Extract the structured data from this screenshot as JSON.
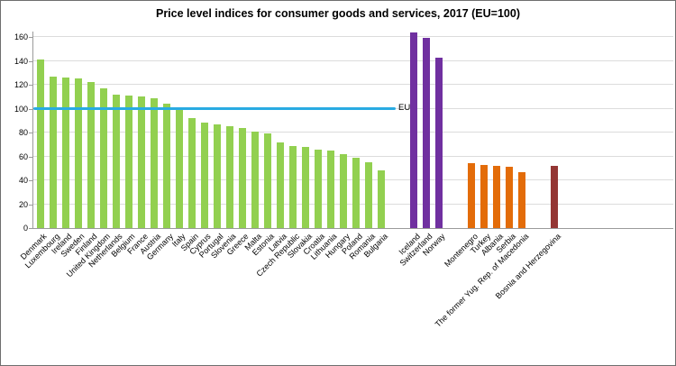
{
  "chart_data": {
    "type": "bar",
    "title": "Price level indices for consumer goods and services, 2017 (EU=100)",
    "xlabel": "",
    "ylabel": "",
    "ylim": [
      0,
      160
    ],
    "ytick_interval": 20,
    "grid": true,
    "legend": "none",
    "reference_line": {
      "label": "EU",
      "value": 100,
      "color": "#29abe2"
    },
    "groups": [
      {
        "color": "#92d050",
        "bars": [
          {
            "label": "Denmark",
            "value": 141
          },
          {
            "label": "Luxembourg",
            "value": 127
          },
          {
            "label": "Ireland",
            "value": 126
          },
          {
            "label": "Sweden",
            "value": 125
          },
          {
            "label": "Finland",
            "value": 122
          },
          {
            "label": "United Kingdom",
            "value": 117
          },
          {
            "label": "Netherlands",
            "value": 112
          },
          {
            "label": "Belgium",
            "value": 111
          },
          {
            "label": "France",
            "value": 110
          },
          {
            "label": "Austria",
            "value": 109
          },
          {
            "label": "Germany",
            "value": 104
          },
          {
            "label": "Italy",
            "value": 99
          },
          {
            "label": "Spain",
            "value": 92
          },
          {
            "label": "Cyprus",
            "value": 88
          },
          {
            "label": "Portugal",
            "value": 87
          },
          {
            "label": "Slovenia",
            "value": 85
          },
          {
            "label": "Greece",
            "value": 84
          },
          {
            "label": "Malta",
            "value": 81
          },
          {
            "label": "Estonia",
            "value": 79
          },
          {
            "label": "Latvia",
            "value": 72
          },
          {
            "label": "Czech Republic",
            "value": 69
          },
          {
            "label": "Slovakia",
            "value": 68
          },
          {
            "label": "Croatia",
            "value": 66
          },
          {
            "label": "Lithuania",
            "value": 65
          },
          {
            "label": "Hungary",
            "value": 62
          },
          {
            "label": "Poland",
            "value": 59
          },
          {
            "label": "Romania",
            "value": 55
          },
          {
            "label": "Bulgaria",
            "value": 48
          }
        ]
      },
      {
        "color": "#7030a0",
        "bars": [
          {
            "label": "Iceland",
            "value": 164
          },
          {
            "label": "Switzerland",
            "value": 159
          },
          {
            "label": "Norway",
            "value": 143
          }
        ]
      },
      {
        "color": "#e36c09",
        "bars": [
          {
            "label": "Montenegro",
            "value": 54
          },
          {
            "label": "Turkey",
            "value": 53
          },
          {
            "label": "Albania",
            "value": 52
          },
          {
            "label": "Serbia",
            "value": 51
          },
          {
            "label": "The former Yug. Rep. of Macedonia",
            "value": 47
          }
        ]
      },
      {
        "color": "#943634",
        "bars": [
          {
            "label": "Bosnia and Herzegovina",
            "value": 52
          }
        ]
      }
    ]
  }
}
